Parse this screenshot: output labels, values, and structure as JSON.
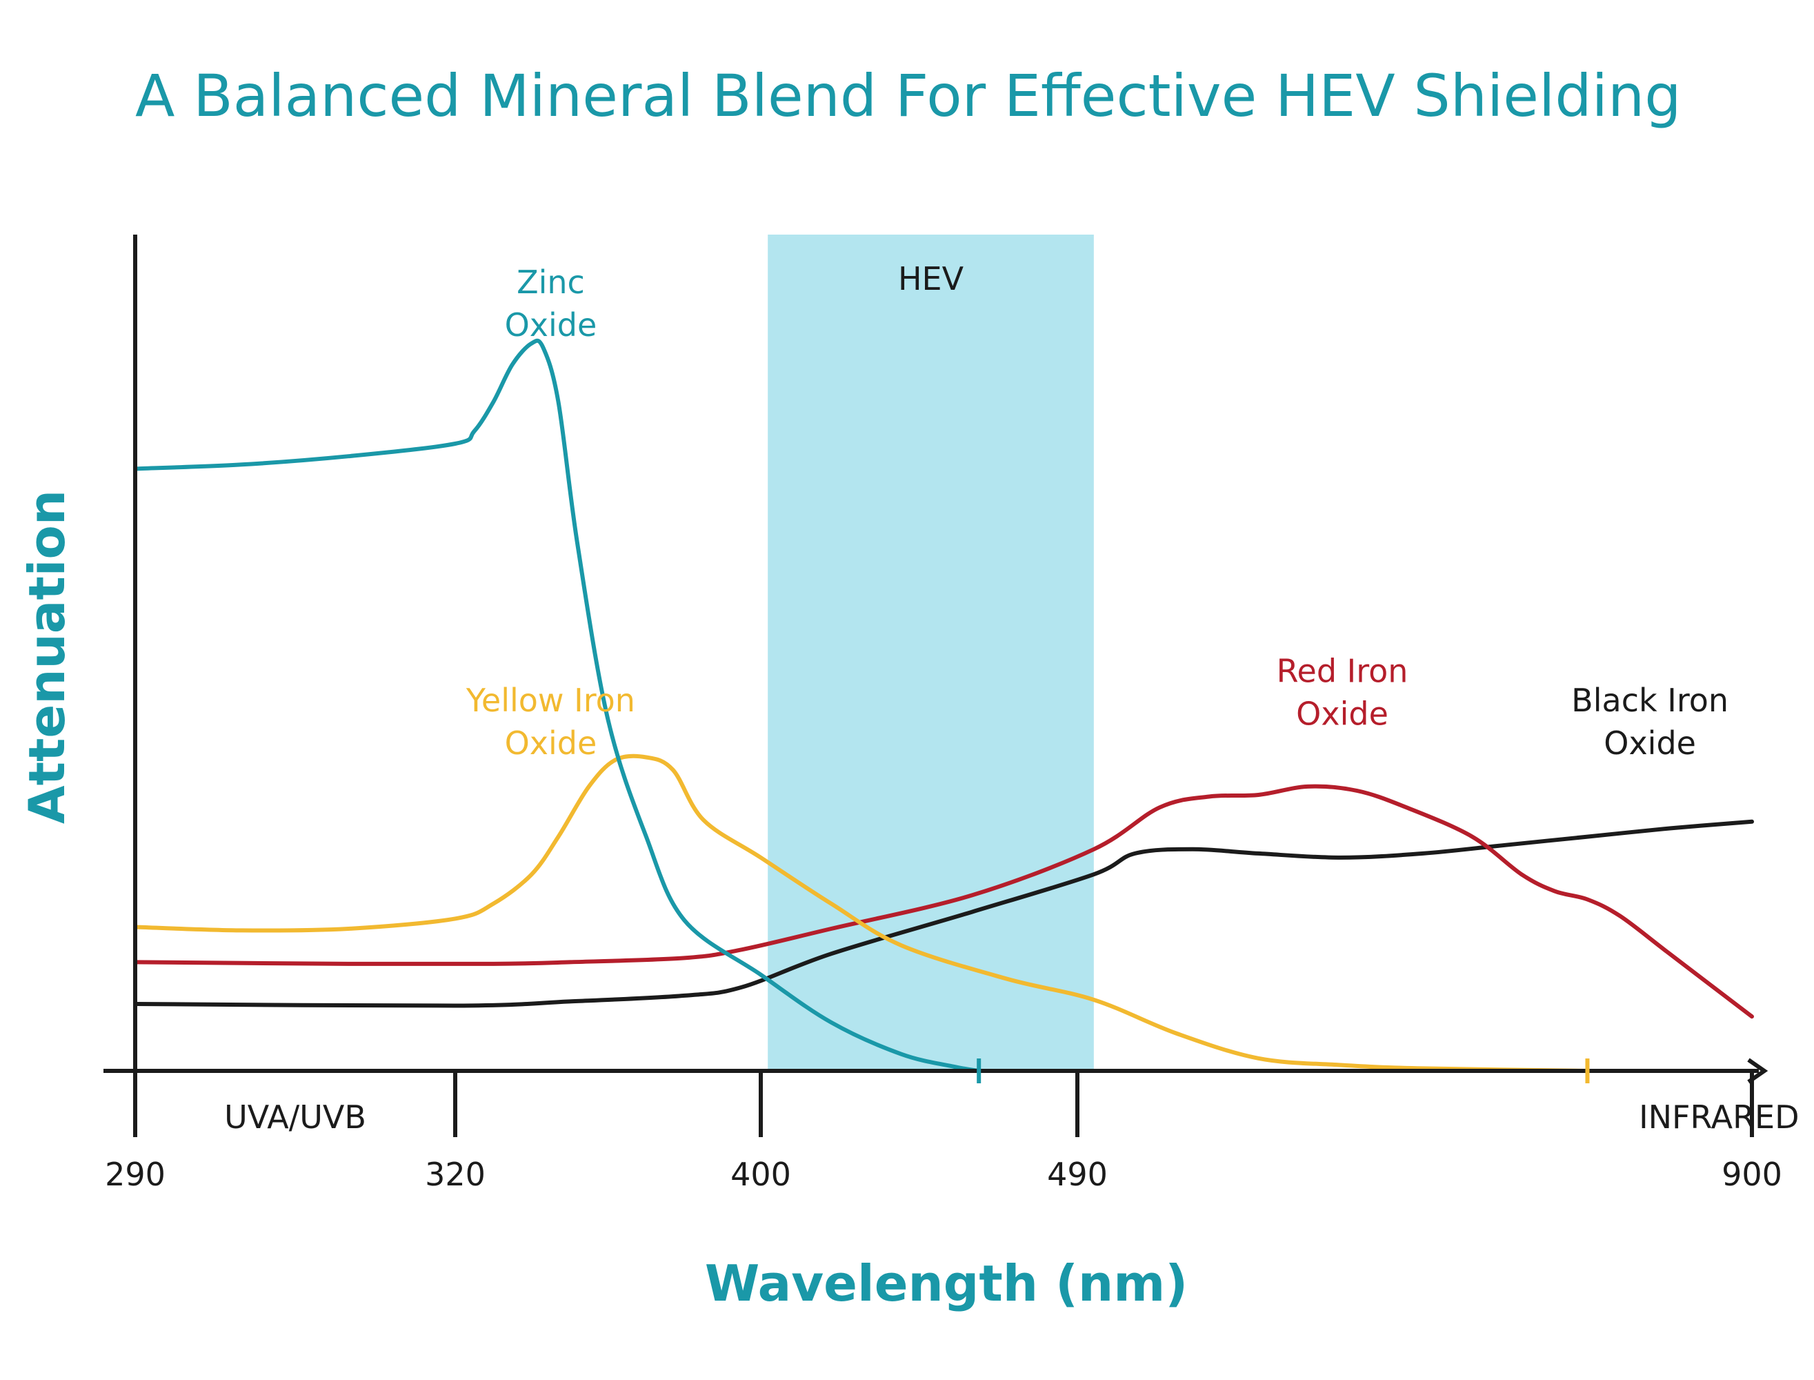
{
  "chart_data": {
    "type": "line",
    "title": "A Balanced Mineral Blend For Effective HEV Shielding",
    "xlabel": "Wavelength (nm)",
    "ylabel": "Attenuation",
    "x_ticks": [
      {
        "value": 290,
        "label": "290"
      },
      {
        "value": 320,
        "label": "320"
      },
      {
        "value": 400,
        "label": "400"
      },
      {
        "value": 490,
        "label": "490"
      },
      {
        "value": 900,
        "label": "900"
      }
    ],
    "regions": [
      {
        "name": "HEV",
        "label": "HEV",
        "x_start": 402,
        "x_end": 500,
        "color": "#b3e5ef",
        "shaded": true
      },
      {
        "name": "UVA/UVB",
        "label": "UVA/UVB",
        "x_center": 305,
        "shaded": false
      },
      {
        "name": "INFRARED",
        "label": "INFRARED",
        "x_center": 880,
        "shaded": false
      }
    ],
    "ylim": [
      0,
      1
    ],
    "grid": false,
    "series": [
      {
        "name": "Zinc Oxide",
        "label_lines": [
          "Zinc",
          "Oxide"
        ],
        "color": "#1a98a8",
        "end_marker_x": 462,
        "points": [
          [
            290,
            0.72
          ],
          [
            300,
            0.725
          ],
          [
            310,
            0.735
          ],
          [
            320,
            0.75
          ],
          [
            325,
            0.765
          ],
          [
            330,
            0.8
          ],
          [
            335,
            0.845
          ],
          [
            340,
            0.87
          ],
          [
            343,
            0.865
          ],
          [
            347,
            0.8
          ],
          [
            352,
            0.63
          ],
          [
            360,
            0.42
          ],
          [
            370,
            0.28
          ],
          [
            380,
            0.18
          ],
          [
            400,
            0.115
          ],
          [
            420,
            0.058
          ],
          [
            440,
            0.02
          ],
          [
            455,
            0.005
          ],
          [
            462,
            0.0
          ]
        ]
      },
      {
        "name": "Yellow Iron Oxide",
        "label_lines": [
          "Yellow Iron",
          "Oxide"
        ],
        "color": "#f2b930",
        "end_marker_x": 800,
        "points": [
          [
            290,
            0.172
          ],
          [
            300,
            0.168
          ],
          [
            310,
            0.17
          ],
          [
            320,
            0.182
          ],
          [
            330,
            0.2
          ],
          [
            340,
            0.235
          ],
          [
            347,
            0.28
          ],
          [
            355,
            0.34
          ],
          [
            362,
            0.372
          ],
          [
            370,
            0.375
          ],
          [
            377,
            0.36
          ],
          [
            385,
            0.3
          ],
          [
            400,
            0.255
          ],
          [
            420,
            0.2
          ],
          [
            440,
            0.15
          ],
          [
            470,
            0.11
          ],
          [
            500,
            0.085
          ],
          [
            550,
            0.045
          ],
          [
            600,
            0.015
          ],
          [
            650,
            0.007
          ],
          [
            700,
            0.003
          ],
          [
            800,
            0.0
          ]
        ]
      },
      {
        "name": "Red Iron Oxide",
        "label_lines": [
          "Red Iron",
          "Oxide"
        ],
        "color": "#b51e2b",
        "points": [
          [
            290,
            0.13
          ],
          [
            310,
            0.128
          ],
          [
            330,
            0.128
          ],
          [
            350,
            0.13
          ],
          [
            380,
            0.135
          ],
          [
            395,
            0.145
          ],
          [
            420,
            0.17
          ],
          [
            460,
            0.21
          ],
          [
            500,
            0.265
          ],
          [
            540,
            0.315
          ],
          [
            570,
            0.328
          ],
          [
            600,
            0.33
          ],
          [
            630,
            0.34
          ],
          [
            660,
            0.335
          ],
          [
            690,
            0.315
          ],
          [
            730,
            0.28
          ],
          [
            760,
            0.235
          ],
          [
            780,
            0.215
          ],
          [
            800,
            0.205
          ],
          [
            820,
            0.185
          ],
          [
            850,
            0.14
          ],
          [
            900,
            0.065
          ]
        ]
      },
      {
        "name": "Black Iron Oxide",
        "label_lines": [
          "Black Iron",
          "Oxide"
        ],
        "color": "#1b1b1b",
        "points": [
          [
            290,
            0.08
          ],
          [
            320,
            0.078
          ],
          [
            350,
            0.083
          ],
          [
            380,
            0.09
          ],
          [
            395,
            0.1
          ],
          [
            420,
            0.14
          ],
          [
            460,
            0.19
          ],
          [
            500,
            0.235
          ],
          [
            525,
            0.26
          ],
          [
            560,
            0.265
          ],
          [
            600,
            0.26
          ],
          [
            650,
            0.255
          ],
          [
            700,
            0.26
          ],
          [
            750,
            0.27
          ],
          [
            800,
            0.28
          ],
          [
            850,
            0.29
          ],
          [
            900,
            0.298
          ]
        ]
      }
    ]
  }
}
